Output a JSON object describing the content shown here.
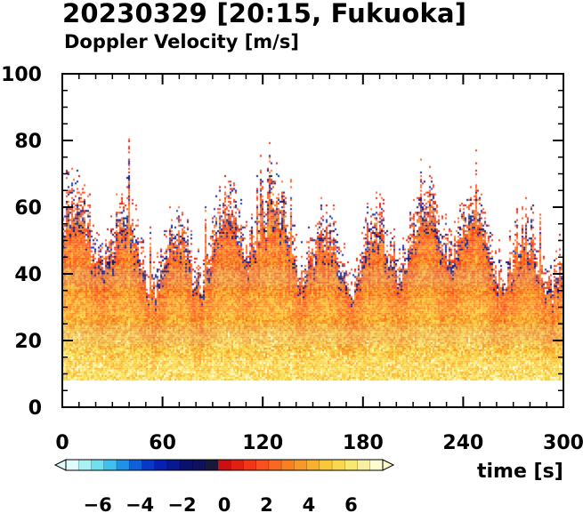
{
  "chart_data": {
    "type": "heatmap",
    "title": "20230329 [20:15, Fukuoka]",
    "subtitle": "Doppler Velocity [m/s]",
    "xlabel": "time [s]",
    "ylabel": "",
    "xlim": [
      0,
      300
    ],
    "ylim": [
      0,
      100
    ],
    "x_ticks": [
      0,
      60,
      120,
      180,
      240,
      300
    ],
    "y_ticks": [
      0,
      20,
      40,
      60,
      80,
      100
    ],
    "data_height_range": [
      8,
      76
    ],
    "colorbar": {
      "range": [
        -7.5,
        7.5
      ],
      "ticks": [
        -6,
        -4,
        -2,
        0,
        2,
        4,
        6
      ],
      "tick_labels": [
        "−6",
        "−4",
        "−2",
        "0",
        "2",
        "4",
        "6"
      ],
      "colors": [
        "#e0fcfc",
        "#a8f0f4",
        "#70e0f0",
        "#40c0f0",
        "#2090e8",
        "#1060d8",
        "#0838c8",
        "#0820b0",
        "#081890",
        "#081070",
        "#101060",
        "#181838",
        "#cc1010",
        "#e02010",
        "#f03818",
        "#f85020",
        "#f86820",
        "#f88020",
        "#f89828",
        "#f8b030",
        "#f8c838",
        "#f8d850",
        "#f8e870",
        "#f8f0a0",
        "#fcfcd0"
      ]
    },
    "grid": false
  }
}
